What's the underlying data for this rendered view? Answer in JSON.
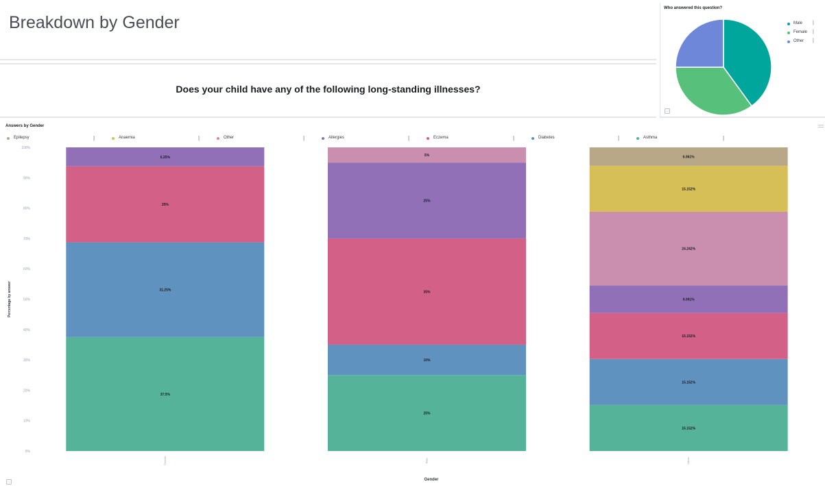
{
  "header": {
    "title": "Breakdown by Gender"
  },
  "question": {
    "text": "Does your child have any of the following long-standing illnesses?"
  },
  "pie": {
    "title": "Who answered this question?",
    "legend": [
      {
        "label": "Male",
        "color": "#00a69b"
      },
      {
        "label": "Female",
        "color": "#57c17b"
      },
      {
        "label": "Other",
        "color": "#6f87d8"
      }
    ],
    "sep": "|",
    "slices": [
      {
        "label": "Male",
        "value": 40,
        "color": "#00a69b"
      },
      {
        "label": "Female",
        "value": 35,
        "color": "#57c17b"
      },
      {
        "label": "Other",
        "value": 25,
        "color": "#6f87d8"
      }
    ]
  },
  "chart": {
    "title": "Answers by Gender",
    "legend_sep": "|",
    "legend": [
      {
        "label": "Epilepsy",
        "color": "#b9a888"
      },
      {
        "label": "Anaemia",
        "color": "#d6bf57"
      },
      {
        "label": "Other",
        "color": "#ca8eae"
      },
      {
        "label": "Allergies",
        "color": "#9170b8"
      },
      {
        "label": "Eczema",
        "color": "#d36086"
      },
      {
        "label": "Diabetes",
        "color": "#6092c0"
      },
      {
        "label": "Asthma",
        "color": "#54b399"
      }
    ],
    "xlabel": "Gender",
    "ylabel": "Percentage by answer"
  },
  "chart_data": {
    "type": "bar",
    "stacked": true,
    "categories": [
      "Female",
      "Male",
      "Other"
    ],
    "ylim": [
      0,
      100
    ],
    "yticks": [
      "0%",
      "10%",
      "20%",
      "30%",
      "40%",
      "50%",
      "60%",
      "70%",
      "80%",
      "90%",
      "100%"
    ],
    "series": [
      {
        "name": "Asthma",
        "color": "#54b399",
        "values": [
          37.5,
          25,
          15.152
        ],
        "labels": [
          "37.5%",
          "25%",
          "15.152%"
        ]
      },
      {
        "name": "Diabetes",
        "color": "#6092c0",
        "values": [
          31.25,
          10,
          15.152
        ],
        "labels": [
          "31.25%",
          "10%",
          "15.152%"
        ]
      },
      {
        "name": "Eczema",
        "color": "#d36086",
        "values": [
          25,
          35,
          15.152
        ],
        "labels": [
          "25%",
          "35%",
          "15.152%"
        ]
      },
      {
        "name": "Allergies",
        "color": "#9170b8",
        "values": [
          6.25,
          25,
          9.091
        ],
        "labels": [
          "6.25%",
          "25%",
          "9.091%"
        ]
      },
      {
        "name": "Other",
        "color": "#ca8eae",
        "values": [
          0,
          5,
          24.242
        ],
        "labels": [
          "",
          "5%",
          "24.242%"
        ]
      },
      {
        "name": "Anaemia",
        "color": "#d6bf57",
        "values": [
          0,
          0,
          15.152
        ],
        "labels": [
          "",
          "",
          "15.152%"
        ]
      },
      {
        "name": "Epilepsy",
        "color": "#b9a888",
        "values": [
          0,
          0,
          6.061
        ],
        "labels": [
          "",
          "",
          "6.061%"
        ]
      }
    ]
  }
}
